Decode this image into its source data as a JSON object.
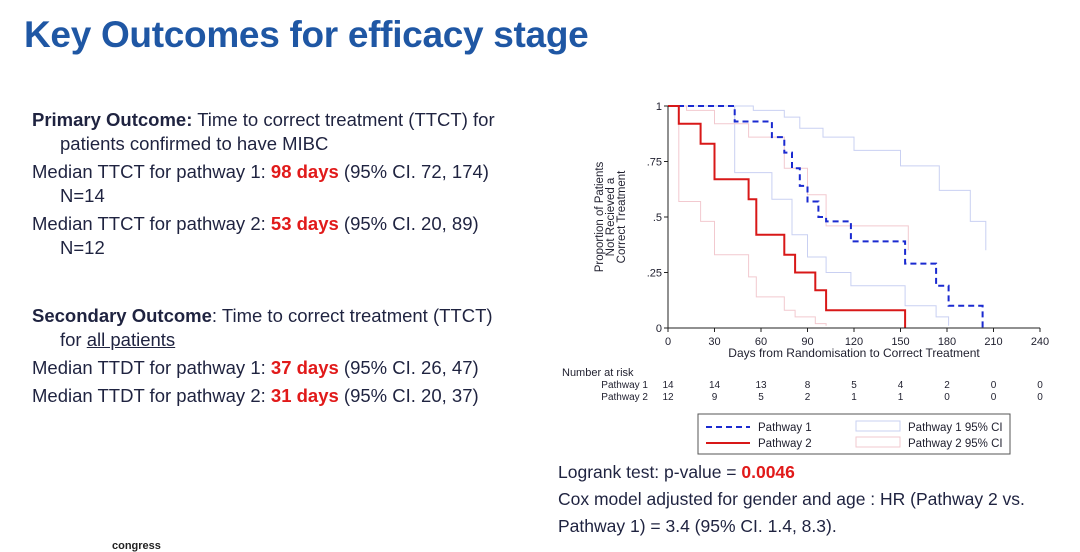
{
  "slide": {
    "title": "Key Outcomes for efficacy stage",
    "footer_logo": "congress"
  },
  "left": {
    "primary_label": "Primary Outcome:",
    "primary_text": " Time to correct treatment (TTCT) for",
    "primary_text_2": "patients confirmed to have MIBC",
    "p1_prefix": "Median TTCT for pathway 1: ",
    "p1_value": "98 days",
    "p1_ci": " (95% CI. 72, 174)",
    "p1_n": "N=14",
    "p2_prefix": "Median TTCT for pathway 2: ",
    "p2_value": "53 days",
    "p2_ci": " (95% CI. 20,   89)",
    "p2_n": "N=12",
    "secondary_label": "Secondary Outcome",
    "secondary_text": ": Time to correct treatment (TTCT)",
    "secondary_for": "for ",
    "secondary_all": "all patients",
    "s1_prefix": "Median TTDT for pathway 1: ",
    "s1_value": "37 days",
    "s1_ci": " (95% CI. 26, 47)",
    "s2_prefix": "Median TTDT for pathway 2: ",
    "s2_value": "31 days",
    "s2_ci": " (95% CI. 20, 37)"
  },
  "stats": {
    "logrank_prefix": "Logrank test: p-value = ",
    "logrank_value": "0.0046",
    "cox_line1": "Cox model adjusted for gender and age : HR (Pathway 2 vs.",
    "cox_line2": "Pathway 1) = 3.4 (95% CI. 1.4, 8.3)."
  },
  "colors": {
    "title": "#1f57a4",
    "pathway1": "#1a2ad0",
    "pathway2": "#d81818",
    "ci1": "#c9d0f2",
    "ci2": "#f2c9cf",
    "highlight": "#e11a1a"
  },
  "chart_data": {
    "type": "line",
    "xlabel": "Days from Randomisation to Correct Treatment",
    "ylabel_lines": [
      "Proportion of Patients",
      "Not Recieved a",
      "Correct Treatment"
    ],
    "xlim": [
      0,
      240
    ],
    "ylim": [
      0,
      1
    ],
    "xticks": [
      0,
      30,
      60,
      90,
      120,
      150,
      180,
      210,
      240
    ],
    "yticks": [
      {
        "value": 0,
        "label": "0"
      },
      {
        "value": 0.25,
        "label": ".25"
      },
      {
        "value": 0.5,
        "label": ".5"
      },
      {
        "value": 0.75,
        "label": ".75"
      },
      {
        "value": 1,
        "label": "1"
      }
    ],
    "series": [
      {
        "name": "Pathway 1",
        "style": "dashed",
        "steps": [
          [
            0,
            1
          ],
          [
            43,
            1
          ],
          [
            43,
            0.93
          ],
          [
            67,
            0.93
          ],
          [
            67,
            0.86
          ],
          [
            75,
            0.86
          ],
          [
            75,
            0.79
          ],
          [
            80,
            0.79
          ],
          [
            80,
            0.72
          ],
          [
            85,
            0.72
          ],
          [
            85,
            0.64
          ],
          [
            90,
            0.64
          ],
          [
            90,
            0.57
          ],
          [
            97,
            0.57
          ],
          [
            97,
            0.5
          ],
          [
            102,
            0.5
          ],
          [
            102,
            0.48
          ],
          [
            118,
            0.48
          ],
          [
            118,
            0.39
          ],
          [
            153,
            0.39
          ],
          [
            153,
            0.29
          ],
          [
            173,
            0.29
          ],
          [
            173,
            0.19
          ],
          [
            181,
            0.19
          ],
          [
            181,
            0.1
          ],
          [
            203,
            0.1
          ],
          [
            203,
            0
          ]
        ]
      },
      {
        "name": "Pathway 2",
        "style": "solid",
        "steps": [
          [
            0,
            1
          ],
          [
            7,
            1
          ],
          [
            7,
            0.92
          ],
          [
            21,
            0.92
          ],
          [
            21,
            0.83
          ],
          [
            30,
            0.83
          ],
          [
            30,
            0.67
          ],
          [
            52,
            0.67
          ],
          [
            52,
            0.58
          ],
          [
            57,
            0.58
          ],
          [
            57,
            0.42
          ],
          [
            75,
            0.42
          ],
          [
            75,
            0.33
          ],
          [
            82,
            0.33
          ],
          [
            82,
            0.25
          ],
          [
            95,
            0.25
          ],
          [
            95,
            0.17
          ],
          [
            102,
            0.17
          ],
          [
            102,
            0.08
          ],
          [
            153,
            0.08
          ],
          [
            153,
            0
          ]
        ]
      },
      {
        "name": "Pathway 1 95% CI",
        "style": "ci",
        "bands": [
          [
            [
              0,
              1
            ],
            [
              55,
              1
            ],
            [
              55,
              0.98
            ],
            [
              75,
              0.98
            ],
            [
              75,
              0.95
            ],
            [
              85,
              0.95
            ],
            [
              85,
              0.9
            ],
            [
              100,
              0.9
            ],
            [
              100,
              0.86
            ],
            [
              120,
              0.86
            ],
            [
              120,
              0.8
            ],
            [
              150,
              0.8
            ],
            [
              150,
              0.73
            ],
            [
              175,
              0.73
            ],
            [
              175,
              0.62
            ],
            [
              195,
              0.62
            ],
            [
              195,
              0.48
            ],
            [
              205,
              0.48
            ],
            [
              205,
              0.35
            ]
          ],
          [
            [
              0,
              1
            ],
            [
              43,
              1
            ],
            [
              43,
              0.7
            ],
            [
              67,
              0.7
            ],
            [
              67,
              0.58
            ],
            [
              80,
              0.58
            ],
            [
              80,
              0.42
            ],
            [
              90,
              0.42
            ],
            [
              90,
              0.32
            ],
            [
              102,
              0.32
            ],
            [
              102,
              0.25
            ],
            [
              118,
              0.25
            ],
            [
              118,
              0.19
            ],
            [
              153,
              0.19
            ],
            [
              153,
              0.1
            ],
            [
              173,
              0.1
            ],
            [
              173,
              0.05
            ],
            [
              181,
              0.05
            ],
            [
              181,
              0.01
            ]
          ]
        ]
      },
      {
        "name": "Pathway 2 95% CI",
        "style": "ci",
        "bands": [
          [
            [
              0,
              1
            ],
            [
              12,
              1
            ],
            [
              12,
              0.98
            ],
            [
              30,
              0.98
            ],
            [
              30,
              0.92
            ],
            [
              52,
              0.92
            ],
            [
              52,
              0.86
            ],
            [
              75,
              0.86
            ],
            [
              75,
              0.72
            ],
            [
              90,
              0.72
            ],
            [
              90,
              0.6
            ],
            [
              102,
              0.6
            ],
            [
              102,
              0.46
            ],
            [
              155,
              0.46
            ],
            [
              155,
              0.35
            ]
          ],
          [
            [
              0,
              1
            ],
            [
              7,
              1
            ],
            [
              7,
              0.57
            ],
            [
              21,
              0.57
            ],
            [
              21,
              0.48
            ],
            [
              30,
              0.48
            ],
            [
              30,
              0.33
            ],
            [
              52,
              0.33
            ],
            [
              52,
              0.23
            ],
            [
              57,
              0.23
            ],
            [
              57,
              0.14
            ],
            [
              75,
              0.14
            ],
            [
              75,
              0.08
            ],
            [
              82,
              0.08
            ],
            [
              82,
              0.05
            ],
            [
              95,
              0.05
            ],
            [
              95,
              0.02
            ],
            [
              102,
              0.02
            ],
            [
              102,
              0.01
            ]
          ]
        ]
      }
    ],
    "risk_table": {
      "header": "Number at risk",
      "rows": [
        {
          "label": "Pathway 1",
          "values": [
            14,
            14,
            13,
            8,
            5,
            4,
            2,
            0,
            0
          ]
        },
        {
          "label": "Pathway 2",
          "values": [
            12,
            9,
            5,
            2,
            1,
            1,
            0,
            0,
            0
          ]
        }
      ]
    },
    "legend": {
      "position": "bottom",
      "entries": [
        "Pathway 1",
        "Pathway 1 95% CI",
        "Pathway 2",
        "Pathway 2 95% CI"
      ]
    }
  }
}
